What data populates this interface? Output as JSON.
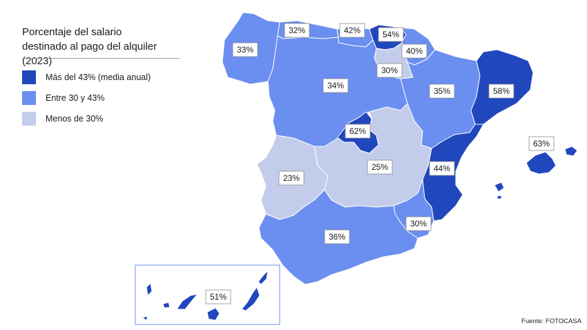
{
  "title_line1": "Porcentaje del salario",
  "title_line2": "destinado al pago del alquiler (2023)",
  "legend": [
    {
      "label": "Más del 43% (media anual)",
      "color": "#2147bd"
    },
    {
      "label": "Entre 30 y 43%",
      "color": "#6b8ff0"
    },
    {
      "label": "Menos de 30%",
      "color": "#c3cdeb"
    }
  ],
  "source": "Fuente: FOTOCASA",
  "regions": {
    "galicia": {
      "label": "33%",
      "class": "mid"
    },
    "asturias": {
      "label": "32%",
      "class": "mid"
    },
    "cantabria": {
      "label": "42%",
      "class": "mid"
    },
    "pais_vasco": {
      "label": "54%",
      "class": "high"
    },
    "navarra": {
      "label": "40%",
      "class": "mid"
    },
    "la_rioja": {
      "label": "30%",
      "class": "low"
    },
    "castilla_leon": {
      "label": "34%",
      "class": "mid"
    },
    "aragon": {
      "label": "35%",
      "class": "mid"
    },
    "cataluna": {
      "label": "58%",
      "class": "high"
    },
    "madrid": {
      "label": "62%",
      "class": "high"
    },
    "castilla_la_mancha": {
      "label": "25%",
      "class": "low"
    },
    "extremadura": {
      "label": "23%",
      "class": "low"
    },
    "valencia": {
      "label": "44%",
      "class": "high"
    },
    "baleares": {
      "label": "63%",
      "class": "high"
    },
    "murcia": {
      "label": "30%",
      "class": "mid"
    },
    "andalucia": {
      "label": "36%",
      "class": "mid"
    },
    "canarias": {
      "label": "51%",
      "class": "high"
    }
  }
}
